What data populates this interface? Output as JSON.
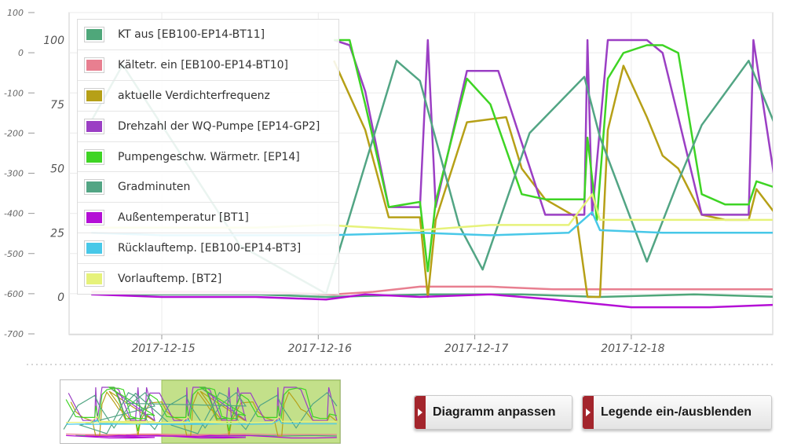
{
  "chart_data": {
    "type": "line",
    "x_axis": {
      "ticks": [
        "2017-12-15",
        "2017-12-16",
        "2017-12-17",
        "2017-12-18"
      ]
    },
    "y_axis_left": {
      "ticks": [
        100,
        0,
        -100,
        -200,
        -300,
        -400,
        -500,
        -600,
        -700
      ],
      "range": [
        -700,
        100
      ]
    },
    "y_axis_inner": {
      "ticks": [
        100,
        75,
        50,
        25,
        0
      ],
      "range": [
        0,
        100
      ]
    },
    "legend_placement": "top-left, overlaying plot",
    "series": [
      {
        "name": "KT aus [EB100-EP14-BT11]",
        "color": "#4fa77a",
        "axis": "inner",
        "points": [
          [
            14.55,
            1
          ],
          [
            15.0,
            1
          ],
          [
            15.6,
            1
          ],
          [
            16.05,
            0
          ],
          [
            16.7,
            1
          ],
          [
            17.3,
            1
          ],
          [
            17.8,
            0
          ],
          [
            18.4,
            1
          ],
          [
            18.95,
            0
          ]
        ]
      },
      {
        "name": "Kältetr. ein [EB100-EP14-BT10]",
        "color": "#e87f90",
        "axis": "inner",
        "points": [
          [
            14.55,
            2
          ],
          [
            15.0,
            2
          ],
          [
            15.6,
            2
          ],
          [
            16.1,
            1
          ],
          [
            16.35,
            2
          ],
          [
            16.65,
            4
          ],
          [
            17.1,
            4
          ],
          [
            17.5,
            3
          ],
          [
            18.0,
            3
          ],
          [
            18.5,
            3
          ],
          [
            18.95,
            3
          ]
        ]
      },
      {
        "name": "aktuelle Verdichterfrequenz",
        "color": "#b6a017",
        "axis": "inner",
        "points": [
          [
            16.1,
            92
          ],
          [
            16.3,
            65
          ],
          [
            16.45,
            31
          ],
          [
            16.65,
            31
          ],
          [
            16.7,
            0
          ],
          [
            16.75,
            30
          ],
          [
            16.95,
            68
          ],
          [
            17.2,
            70
          ],
          [
            17.3,
            50
          ],
          [
            17.45,
            38
          ],
          [
            17.65,
            31
          ],
          [
            17.72,
            0
          ],
          [
            17.8,
            0
          ],
          [
            17.85,
            65
          ],
          [
            17.95,
            90
          ],
          [
            18.1,
            70
          ],
          [
            18.2,
            55
          ],
          [
            18.3,
            50
          ],
          [
            18.45,
            32
          ],
          [
            18.6,
            30
          ],
          [
            18.75,
            30
          ],
          [
            18.8,
            42
          ],
          [
            18.95,
            30
          ]
        ]
      },
      {
        "name": "Drehzahl der WQ-Pumpe [EP14-GP2]",
        "color": "#9b3fc4",
        "axis": "inner",
        "points": [
          [
            16.1,
            100
          ],
          [
            16.2,
            98
          ],
          [
            16.3,
            80
          ],
          [
            16.45,
            35
          ],
          [
            16.65,
            35
          ],
          [
            16.7,
            100
          ],
          [
            16.75,
            35
          ],
          [
            16.95,
            88
          ],
          [
            17.15,
            88
          ],
          [
            17.3,
            60
          ],
          [
            17.45,
            32
          ],
          [
            17.7,
            32
          ],
          [
            17.72,
            100
          ],
          [
            17.75,
            32
          ],
          [
            17.85,
            100
          ],
          [
            17.95,
            100
          ],
          [
            18.1,
            100
          ],
          [
            18.2,
            95
          ],
          [
            18.3,
            70
          ],
          [
            18.45,
            32
          ],
          [
            18.6,
            32
          ],
          [
            18.75,
            32
          ],
          [
            18.78,
            100
          ],
          [
            18.95,
            32
          ]
        ]
      },
      {
        "name": "Pumpengeschw. Wärmetr. [EP14]",
        "color": "#3ed424",
        "axis": "inner",
        "points": [
          [
            16.1,
            100
          ],
          [
            16.2,
            100
          ],
          [
            16.3,
            75
          ],
          [
            16.45,
            35
          ],
          [
            16.65,
            37
          ],
          [
            16.7,
            10
          ],
          [
            16.75,
            37
          ],
          [
            16.95,
            85
          ],
          [
            17.1,
            75
          ],
          [
            17.3,
            40
          ],
          [
            17.45,
            38
          ],
          [
            17.7,
            38
          ],
          [
            17.72,
            62
          ],
          [
            17.78,
            30
          ],
          [
            17.85,
            85
          ],
          [
            17.95,
            95
          ],
          [
            18.1,
            98
          ],
          [
            18.2,
            98
          ],
          [
            18.3,
            95
          ],
          [
            18.45,
            40
          ],
          [
            18.6,
            36
          ],
          [
            18.75,
            36
          ],
          [
            18.8,
            45
          ],
          [
            18.95,
            42
          ]
        ]
      },
      {
        "name": "Gradminuten",
        "color": "#52a584",
        "axis": "left",
        "points": [
          [
            14.55,
            -170
          ],
          [
            14.75,
            -30
          ],
          [
            15.5,
            -480
          ],
          [
            16.05,
            -600
          ],
          [
            16.5,
            -20
          ],
          [
            16.65,
            -70
          ],
          [
            16.9,
            -430
          ],
          [
            17.05,
            -540
          ],
          [
            17.35,
            -200
          ],
          [
            17.7,
            -60
          ],
          [
            17.8,
            -210
          ],
          [
            18.1,
            -520
          ],
          [
            18.3,
            -320
          ],
          [
            18.45,
            -180
          ],
          [
            18.75,
            -20
          ],
          [
            18.95,
            -210
          ]
        ]
      },
      {
        "name": "Außentemperatur [BT1]",
        "color": "#b40fd6",
        "axis": "inner",
        "points": [
          [
            14.55,
            1
          ],
          [
            15.0,
            0
          ],
          [
            15.6,
            0
          ],
          [
            16.05,
            -1
          ],
          [
            16.3,
            1
          ],
          [
            16.65,
            0
          ],
          [
            17.1,
            1
          ],
          [
            17.5,
            -1
          ],
          [
            18.0,
            -4
          ],
          [
            18.5,
            -4
          ],
          [
            18.95,
            -3
          ]
        ]
      },
      {
        "name": "Rücklauftemp. [EB100-EP14-BT3]",
        "color": "#48c8e8",
        "axis": "inner",
        "points": [
          [
            14.55,
            25
          ],
          [
            15.0,
            24
          ],
          [
            15.6,
            24
          ],
          [
            16.05,
            24
          ],
          [
            16.65,
            25
          ],
          [
            17.1,
            24
          ],
          [
            17.6,
            25
          ],
          [
            17.75,
            33
          ],
          [
            17.8,
            26
          ],
          [
            18.2,
            25
          ],
          [
            18.95,
            25
          ]
        ]
      },
      {
        "name": "Vorlauftemp. [BT2]",
        "color": "#e6f27a",
        "axis": "inner",
        "points": [
          [
            14.55,
            27
          ],
          [
            15.0,
            27
          ],
          [
            15.6,
            27
          ],
          [
            16.05,
            28
          ],
          [
            16.65,
            26
          ],
          [
            17.1,
            28
          ],
          [
            17.6,
            28
          ],
          [
            17.75,
            40
          ],
          [
            17.8,
            30
          ],
          [
            18.2,
            30
          ],
          [
            18.95,
            30
          ]
        ]
      }
    ]
  },
  "legend": {
    "items": [
      {
        "label": "KT aus [EB100-EP14-BT11]",
        "color": "#4fa77a"
      },
      {
        "label": "Kältetr. ein [EB100-EP14-BT10]",
        "color": "#e87f90"
      },
      {
        "label": "aktuelle Verdichterfrequenz",
        "color": "#b6a017"
      },
      {
        "label": "Drehzahl der WQ-Pumpe [EP14-GP2]",
        "color": "#9b3fc4"
      },
      {
        "label": "Pumpengeschw. Wärmetr. [EP14]",
        "color": "#3ed424"
      },
      {
        "label": "Gradminuten",
        "color": "#52a584"
      },
      {
        "label": "Außentemperatur [BT1]",
        "color": "#b40fd6"
      },
      {
        "label": "Rücklauftemp. [EB100-EP14-BT3]",
        "color": "#48c8e8"
      },
      {
        "label": "Vorlauftemp. [BT2]",
        "color": "#e6f27a"
      }
    ]
  },
  "buttons": {
    "adjust_chart": "Diagramm anpassen",
    "toggle_legend": "Legende ein-/ausblenden"
  },
  "colors": {
    "button_accent": "#a3252c",
    "navigator_selection": "#c3e08a"
  }
}
